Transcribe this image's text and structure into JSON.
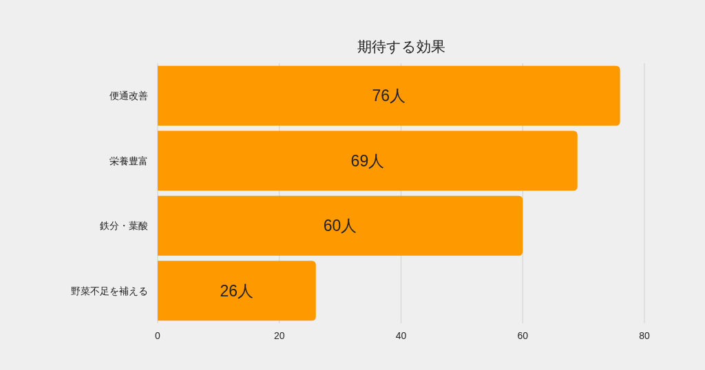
{
  "chart_data": {
    "type": "bar",
    "orientation": "horizontal",
    "title": "期待する効果",
    "categories": [
      "便通改善",
      "栄養豊富",
      "鉄分・葉酸",
      "野菜不足を補える"
    ],
    "values": [
      76,
      69,
      60,
      26
    ],
    "color": "#ff9900",
    "value_labels": [
      "76人",
      "69人",
      "60人",
      "26人"
    ],
    "xlim": [
      0,
      80
    ],
    "xticks": [
      0,
      20,
      40,
      60,
      80
    ],
    "grid": "x"
  }
}
